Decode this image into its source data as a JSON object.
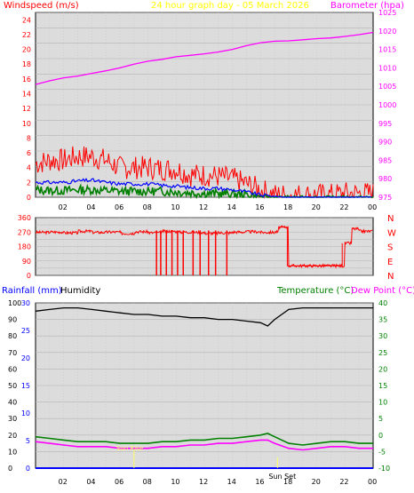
{
  "header": {
    "left_title": "Windspeed (m/s)",
    "center_title": "24 hour graph day - 05 March 2026",
    "right_title": "Barometer (hpa)"
  },
  "colors": {
    "gust": "#ff0000",
    "wind_avg": "#0000ff",
    "wind_low": "#008000",
    "baro": "#ff00ff",
    "direction": "#ff0000",
    "humidity": "#000000",
    "temperature": "#008000",
    "dewpoint": "#ff00ff",
    "rain": "#0000ff",
    "plot_bg": "#dcdcdc",
    "title_red": "#ff0000",
    "title_yellow": "#ffff00",
    "title_magenta": "#ff00ff",
    "sun_marker": "#ffff66"
  },
  "x_ticks": [
    "02",
    "04",
    "06",
    "08",
    "10",
    "12",
    "14",
    "16",
    "18",
    "20",
    "22",
    "00"
  ],
  "chart_data": [
    {
      "type": "line",
      "title": "Windspeed (m/s)",
      "ylabel": "Windspeed (m/s)",
      "ylim": [
        0,
        25
      ],
      "y_ticks": [
        0,
        2,
        4,
        6,
        8,
        10,
        12,
        14,
        16,
        18,
        20,
        22,
        24
      ],
      "y2label": "Barometer (hpa)",
      "y2lim": [
        975,
        1025
      ],
      "y2_ticks": [
        975,
        980,
        985,
        990,
        995,
        1000,
        1005,
        1010,
        1015,
        1020,
        1025
      ],
      "x_hours": [
        0,
        1,
        2,
        3,
        4,
        5,
        6,
        7,
        8,
        9,
        10,
        11,
        12,
        13,
        14,
        15,
        16,
        17,
        18,
        19,
        20,
        21,
        22,
        23,
        24
      ],
      "series": [
        {
          "name": "gust",
          "axis": "left",
          "values": [
            4.5,
            5,
            5,
            5.5,
            5.5,
            5,
            4,
            4,
            4,
            3.8,
            3.8,
            3,
            3,
            2.8,
            2.5,
            1.8,
            1,
            0.3,
            0.3,
            0.3,
            0.3,
            0.3,
            0.5,
            0.5,
            0.5
          ]
        },
        {
          "name": "average",
          "axis": "left",
          "values": [
            2,
            2,
            2,
            2.2,
            2.3,
            2,
            1.8,
            1.8,
            1.8,
            1.6,
            1.5,
            1.3,
            1.2,
            1.2,
            1,
            0.7,
            0.3,
            0.1,
            0,
            0,
            0,
            0,
            0,
            0,
            0
          ]
        },
        {
          "name": "low",
          "axis": "left",
          "values": [
            1,
            0.9,
            0.9,
            1,
            1,
            0.9,
            0.8,
            0.8,
            0.8,
            0.8,
            0.7,
            0.6,
            0.5,
            0.5,
            0.4,
            0.3,
            0.1,
            0,
            0,
            0,
            0,
            0,
            0,
            0,
            0
          ]
        },
        {
          "name": "barometer",
          "axis": "right",
          "values": [
            1005.5,
            1006.5,
            1007.3,
            1007.8,
            1008.5,
            1009.2,
            1010,
            1011,
            1011.8,
            1012.3,
            1013,
            1013.4,
            1013.8,
            1014.3,
            1015,
            1016,
            1016.8,
            1017.2,
            1017.3,
            1017.6,
            1017.9,
            1018.1,
            1018.5,
            1019,
            1019.6
          ]
        }
      ]
    },
    {
      "type": "line",
      "title": "Wind direction",
      "ylim": [
        0,
        360
      ],
      "y_ticks": [
        0,
        45,
        90,
        135,
        180,
        225,
        270,
        315,
        360
      ],
      "compass_labels": [
        "N",
        "W",
        "S",
        "E",
        "N"
      ],
      "x_hours": [
        0,
        1,
        2,
        3,
        4,
        5,
        6,
        7,
        8,
        9,
        10,
        11,
        12,
        13,
        14,
        15,
        16,
        17,
        17.5,
        18,
        19,
        20,
        21,
        22,
        22.5,
        23,
        24
      ],
      "series": [
        {
          "name": "direction",
          "values": [
            268,
            270,
            265,
            275,
            268,
            270,
            262,
            272,
            265,
            275,
            270,
            268,
            262,
            265,
            270,
            272,
            268,
            270,
            300,
            60,
            60,
            60,
            60,
            200,
            290,
            275,
            260
          ]
        }
      ],
      "drops_to_zero_hours": [
        8.6,
        8.9,
        9.3,
        9.7,
        10.1,
        10.5,
        11.2,
        11.7,
        12.3,
        12.8,
        13.6
      ]
    },
    {
      "type": "line",
      "title": "Rainfall / Humidity / Temperature",
      "ylabel": "Rainfall (mm)  Humidity",
      "ylim": [
        0,
        100
      ],
      "y_ticks": [
        0,
        10,
        20,
        30,
        40,
        50,
        60,
        70,
        80,
        90,
        100
      ],
      "rain_ticks": [
        0,
        5,
        10,
        15,
        20,
        25,
        30
      ],
      "y2label": "Temperature (°C) Dew Point (°C)",
      "y2lim": [
        -10,
        40
      ],
      "y2_ticks": [
        -10,
        -5,
        0,
        5,
        10,
        15,
        20,
        25,
        30,
        35,
        40
      ],
      "x_hours": [
        0,
        1,
        2,
        3,
        4,
        5,
        6,
        7,
        8,
        9,
        10,
        11,
        12,
        13,
        14,
        15,
        16,
        16.5,
        17,
        18,
        19,
        20,
        21,
        22,
        23,
        24
      ],
      "series": [
        {
          "name": "humidity",
          "values": [
            95,
            96,
            97,
            97,
            96,
            95,
            94,
            93,
            93,
            92,
            92,
            91,
            91,
            90,
            90,
            89,
            88,
            86,
            90,
            96,
            97,
            97,
            97,
            97,
            97,
            97
          ]
        },
        {
          "name": "temperature",
          "values": [
            -0.5,
            -1,
            -1.5,
            -2,
            -2,
            -2,
            -2.5,
            -2.5,
            -2.5,
            -2,
            -2,
            -1.5,
            -1.5,
            -1,
            -1,
            -0.5,
            0,
            0.5,
            -0.5,
            -2.5,
            -3,
            -2.5,
            -2,
            -2,
            -2.5,
            -2.5
          ]
        },
        {
          "name": "dewpoint",
          "values": [
            -2,
            -2.5,
            -3,
            -3.5,
            -3.5,
            -3.5,
            -4,
            -4,
            -4,
            -3.5,
            -3.5,
            -3,
            -3,
            -2.5,
            -2.5,
            -2,
            -1.5,
            -1.5,
            -2.5,
            -4,
            -4.5,
            -4,
            -3.5,
            -3.5,
            -4,
            -4
          ]
        },
        {
          "name": "rainfall",
          "values": [
            0,
            0,
            0,
            0,
            0,
            0,
            0,
            0,
            0,
            0,
            0,
            0,
            0,
            0,
            0,
            0,
            0,
            0,
            0,
            0,
            0,
            0,
            0,
            0,
            0,
            0
          ]
        }
      ],
      "annotations": {
        "sunrise_label": "Sun Rise",
        "sunset_label": "Sun Set",
        "sunrise_hour": 7,
        "sunset_hour": 17.2
      }
    }
  ],
  "panel3": {
    "left_title_rain": "Rainfall (mm)",
    "left_title_hum": "Humidity",
    "right_title_temp": "Temperature (°C)",
    "right_title_dew": "Dew Point (°C)"
  }
}
